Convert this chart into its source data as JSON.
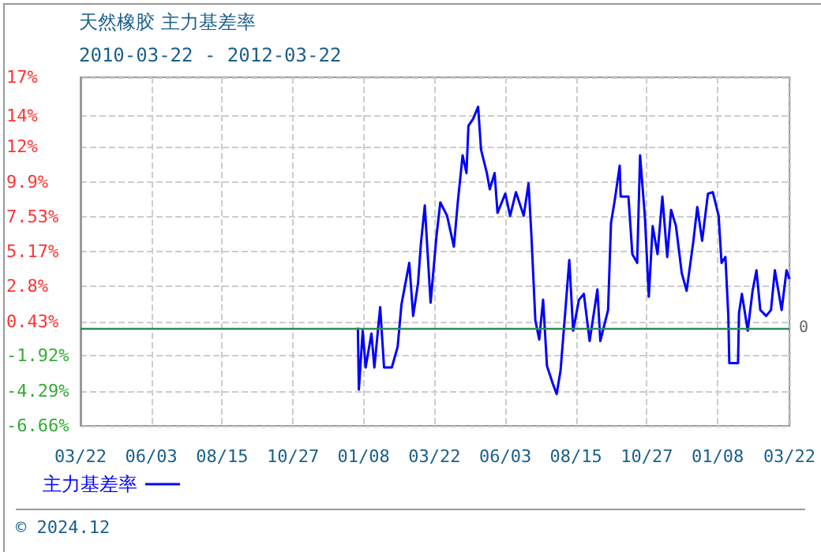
{
  "chart_data": {
    "type": "line",
    "title": "天然橡胶 主力基差率",
    "subtitle": "2010-03-22 - 2012-03-22",
    "annotations": [
      "© 2024.12"
    ],
    "series": [
      {
        "name": "主力基差率",
        "color": "#0000ff",
        "x": [
          "2011-01-02",
          "2011-01-03",
          "2011-01-07",
          "2011-01-10",
          "2011-01-16",
          "2011-01-19",
          "2011-01-25",
          "2011-01-29",
          "2011-02-06",
          "2011-02-12",
          "2011-02-16",
          "2011-02-24",
          "2011-02-28",
          "2011-03-05",
          "2011-03-08",
          "2011-03-12",
          "2011-03-18",
          "2011-03-24",
          "2011-03-28",
          "2011-04-04",
          "2011-04-11",
          "2011-04-15",
          "2011-04-20",
          "2011-04-24",
          "2011-04-26",
          "2011-05-01",
          "2011-05-06",
          "2011-05-09",
          "2011-05-15",
          "2011-05-18",
          "2011-05-23",
          "2011-05-26",
          "2011-06-03",
          "2011-06-08",
          "2011-06-14",
          "2011-06-22",
          "2011-06-27",
          "2011-06-30",
          "2011-07-04",
          "2011-07-08",
          "2011-07-12",
          "2011-07-16",
          "2011-07-22",
          "2011-07-26",
          "2011-07-30",
          "2011-08-04",
          "2011-08-08",
          "2011-08-12",
          "2011-08-18",
          "2011-08-23",
          "2011-08-29",
          "2011-09-06",
          "2011-09-09",
          "2011-09-17",
          "2011-09-20",
          "2011-09-24",
          "2011-09-29",
          "2011-09-30",
          "2011-10-08",
          "2011-10-12",
          "2011-10-17",
          "2011-10-20",
          "2011-10-25",
          "2011-10-29",
          "2011-11-02",
          "2011-11-07",
          "2011-11-12",
          "2011-11-17",
          "2011-11-21",
          "2011-11-26",
          "2011-12-02",
          "2011-12-07",
          "2011-12-14",
          "2011-12-18",
          "2011-12-23",
          "2011-12-29",
          "2012-01-03",
          "2012-01-09",
          "2012-01-12",
          "2012-01-16",
          "2012-01-19",
          "2012-01-20",
          "2012-01-29",
          "2012-01-30",
          "2012-02-02",
          "2012-02-08",
          "2012-02-13",
          "2012-02-17",
          "2012-02-21",
          "2012-02-27",
          "2012-03-03",
          "2012-03-07",
          "2012-03-14",
          "2012-03-19",
          "2012-03-22"
        ],
        "values": [
          0.0,
          -4.2,
          -0.2,
          -2.7,
          -0.4,
          -2.7,
          1.4,
          -2.7,
          -2.7,
          -1.3,
          1.6,
          4.4,
          0.8,
          3.0,
          5.7,
          8.3,
          1.7,
          6.2,
          8.5,
          7.6,
          5.5,
          8.5,
          11.7,
          10.5,
          13.7,
          14.2,
          15.0,
          12.1,
          10.5,
          9.4,
          10.5,
          7.8,
          9.1,
          7.6,
          9.2,
          7.6,
          9.8,
          6.2,
          0.5,
          -0.8,
          1.9,
          -2.6,
          -3.8,
          -4.5,
          -2.9,
          1.2,
          4.6,
          -0.2,
          1.9,
          2.3,
          -0.9,
          2.6,
          -0.9,
          1.2,
          7.1,
          8.7,
          11.0,
          8.9,
          8.9,
          5.0,
          4.4,
          11.7,
          7.5,
          2.1,
          6.9,
          5.0,
          8.9,
          4.8,
          8.0,
          6.9,
          3.7,
          2.5,
          5.9,
          8.2,
          5.9,
          9.1,
          9.2,
          7.6,
          4.4,
          4.8,
          0.8,
          -2.4,
          -2.4,
          1.0,
          2.3,
          -0.2,
          2.5,
          3.9,
          1.2,
          0.8,
          1.2,
          3.9,
          1.2,
          3.9,
          3.3
        ]
      }
    ],
    "xlim": [
      "2010-03-22",
      "2012-03-22"
    ],
    "xticks": [
      {
        "value": "2010-03-22",
        "label": "03/22"
      },
      {
        "value": "2010-06-03",
        "label": "06/03"
      },
      {
        "value": "2010-08-15",
        "label": "08/15"
      },
      {
        "value": "2010-10-27",
        "label": "10/27"
      },
      {
        "value": "2011-01-08",
        "label": "01/08"
      },
      {
        "value": "2011-03-22",
        "label": "03/22"
      },
      {
        "value": "2011-06-03",
        "label": "06/03"
      },
      {
        "value": "2011-08-15",
        "label": "08/15"
      },
      {
        "value": "2011-10-27",
        "label": "10/27"
      },
      {
        "value": "2012-01-08",
        "label": "01/08"
      },
      {
        "value": "2012-03-22",
        "label": "03/22"
      }
    ],
    "ylim": [
      -6.66,
      17
    ],
    "yticks": [
      {
        "value": -6.66,
        "label": "-6.66%"
      },
      {
        "value": -4.29,
        "label": "-4.29%"
      },
      {
        "value": -1.92,
        "label": "-1.92%"
      },
      {
        "value": 0.43,
        "label": "0.43%"
      },
      {
        "value": 2.8,
        "label": "2.8%"
      },
      {
        "value": 5.17,
        "label": "5.17%"
      },
      {
        "value": 7.53,
        "label": "7.53%"
      },
      {
        "value": 9.9,
        "label": "9.9%"
      },
      {
        "value": 12.27,
        "label": "12%"
      },
      {
        "value": 14.4,
        "label": "14%"
      },
      {
        "value": 17,
        "label": "17%"
      }
    ],
    "ref_lines": [
      {
        "axis": "y",
        "value": 0,
        "label": "0",
        "color": "#2e8b57"
      }
    ],
    "grid": true,
    "legend": "bottom left",
    "marker": "none",
    "line_style": "solid"
  }
}
